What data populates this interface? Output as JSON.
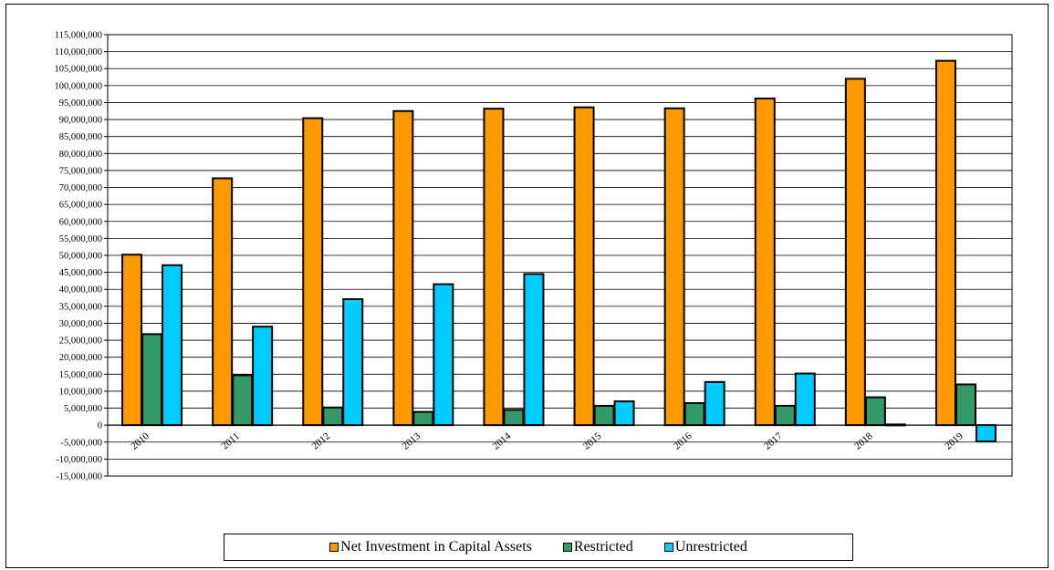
{
  "chart_data": {
    "type": "bar",
    "title": "",
    "xlabel": "",
    "ylabel": "",
    "categories": [
      "2010",
      "2011",
      "2012",
      "2013",
      "2014",
      "2015",
      "2016",
      "2017",
      "2018",
      "2019"
    ],
    "series": [
      {
        "name": "Net Investment in Capital Assets",
        "color": "#FF9900",
        "values": [
          50200000,
          72700000,
          90400000,
          92500000,
          93200000,
          93600000,
          93300000,
          96200000,
          102000000,
          107300000
        ]
      },
      {
        "name": "Restricted",
        "color": "#339966",
        "values": [
          26800000,
          14700000,
          5200000,
          3900000,
          4500000,
          5700000,
          6500000,
          5700000,
          8200000,
          12000000
        ]
      },
      {
        "name": "Unrestricted",
        "color": "#00CCFF",
        "values": [
          47100000,
          29000000,
          37100000,
          41500000,
          44500000,
          7000000,
          12700000,
          15200000,
          200000,
          -4800000
        ]
      }
    ],
    "ylim": [
      -15000000,
      115000000
    ],
    "ytick_step": 5000000,
    "y_tick_labels": [
      "115,000,000",
      "110,000,000",
      "105,000,000",
      "100,000,000",
      "95,000,000",
      "90,000,000",
      "85,000,000",
      "80,000,000",
      "75,000,000",
      "70,000,000",
      "65,000,000",
      "60,000,000",
      "55,000,000",
      "50,000,000",
      "45,000,000",
      "40,000,000",
      "35,000,000",
      "30,000,000",
      "25,000,000",
      "20,000,000",
      "15,000,000",
      "10,000,000",
      "5,000,000",
      "0",
      "-5,000,000",
      "-10,000,000",
      "-15,000,000"
    ],
    "grid": true,
    "legend_position": "bottom"
  }
}
